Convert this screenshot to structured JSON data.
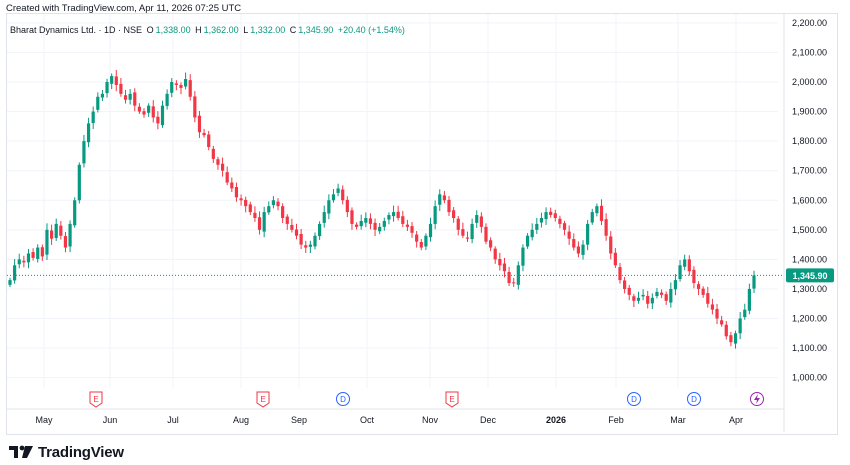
{
  "header": {
    "created_text": "Created with TradingView.com, Apr 11, 2026 07:25 UTC"
  },
  "legend": {
    "symbol": "Bharat Dynamics Ltd. · 1D · NSE",
    "open_label": "O",
    "open": "1,338.00",
    "high_label": "H",
    "high": "1,362.00",
    "low_label": "L",
    "low": "1,332.00",
    "close_label": "C",
    "close": "1,345.90",
    "change": "+20.40 (+1.54%)"
  },
  "price_tag": "1,345.90",
  "colors": {
    "up": "#089981",
    "down": "#f23645",
    "axis_text": "#131722",
    "grid": "#f0f3fa"
  },
  "footer": {
    "logo_text": "TradingView",
    "logo_icon": "tradingview-logo-icon"
  },
  "chart_data": {
    "type": "candlestick",
    "ylim": [
      965,
      2230
    ],
    "y_ticks": [
      "2,200.00",
      "2,100.00",
      "2,000.00",
      "1,900.00",
      "1,800.00",
      "1,700.00",
      "1,600.00",
      "1,500.00",
      "1,400.00",
      "1,300.00",
      "1,200.00",
      "1,100.00",
      "1,000.00"
    ],
    "x_ticks": [
      "May",
      "Jun",
      "Jul",
      "Aug",
      "Sep",
      "Oct",
      "Nov",
      "Dec",
      "2026",
      "Feb",
      "Mar",
      "Apr"
    ],
    "last_price": 1345.9,
    "events": [
      {
        "label": "E",
        "kind": "earnings",
        "after_tick": "May"
      },
      {
        "label": "E",
        "kind": "earnings",
        "after_tick": "Jul"
      },
      {
        "label": "D",
        "kind": "dividend",
        "after_tick": "Aug"
      },
      {
        "label": "E",
        "kind": "earnings",
        "after_tick": "Oct"
      },
      {
        "label": "D",
        "kind": "dividend",
        "after_tick": "2026"
      },
      {
        "label": "D",
        "kind": "dividend",
        "after_tick": "Mar"
      },
      {
        "label": "split",
        "kind": "split",
        "after_tick": "Mar"
      }
    ],
    "path": [
      1330,
      1380,
      1400,
      1390,
      1420,
      1405,
      1440,
      1410,
      1500,
      1470,
      1520,
      1480,
      1440,
      1520,
      1600,
      1720,
      1800,
      1860,
      1900,
      1950,
      1960,
      2000,
      2020,
      1990,
      1960,
      1940,
      1960,
      1920,
      1900,
      1890,
      1920,
      1880,
      1860,
      1920,
      1960,
      2000,
      1990,
      1980,
      2010,
      1950,
      1880,
      1830,
      1820,
      1780,
      1740,
      1720,
      1700,
      1660,
      1640,
      1610,
      1600,
      1580,
      1560,
      1540,
      1500,
      1560,
      1580,
      1600,
      1580,
      1540,
      1520,
      1500,
      1480,
      1450,
      1440,
      1450,
      1480,
      1520,
      1560,
      1600,
      1620,
      1640,
      1600,
      1560,
      1520,
      1510,
      1530,
      1540,
      1520,
      1500,
      1510,
      1530,
      1550,
      1560,
      1540,
      1520,
      1510,
      1490,
      1460,
      1440,
      1480,
      1520,
      1580,
      1620,
      1600,
      1560,
      1540,
      1500,
      1480,
      1470,
      1520,
      1550,
      1510,
      1460,
      1440,
      1400,
      1380,
      1360,
      1320,
      1320,
      1380,
      1440,
      1480,
      1500,
      1520,
      1540,
      1560,
      1550,
      1540,
      1520,
      1500,
      1470,
      1440,
      1420,
      1450,
      1520,
      1560,
      1580,
      1530,
      1480,
      1420,
      1380,
      1330,
      1300,
      1280,
      1260,
      1270,
      1280,
      1250,
      1270,
      1290,
      1280,
      1260,
      1300,
      1330,
      1380,
      1400,
      1360,
      1320,
      1300,
      1280,
      1250,
      1230,
      1200,
      1180,
      1140,
      1120,
      1150,
      1200,
      1230,
      1300,
      1345.9
    ]
  }
}
